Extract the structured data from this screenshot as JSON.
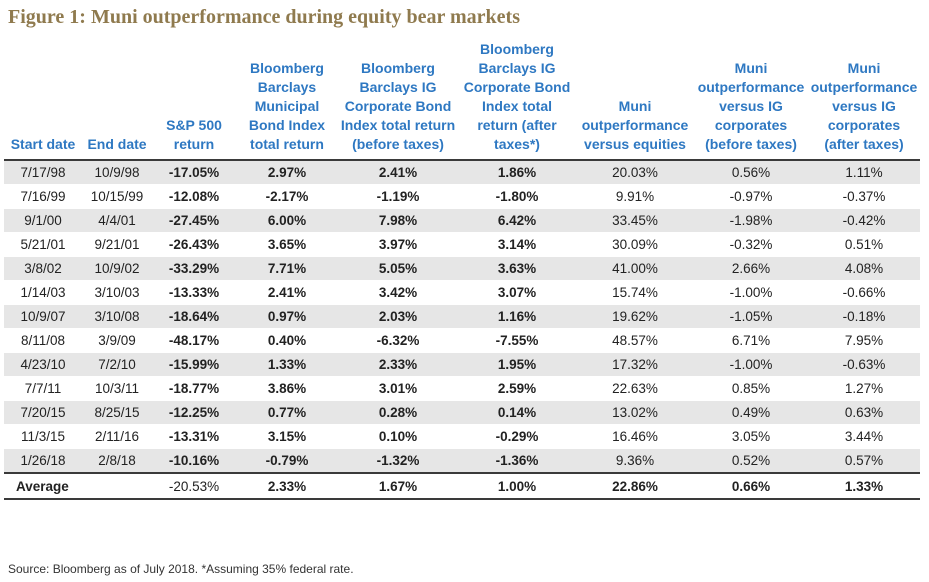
{
  "figure": {
    "title": "Figure 1: Muni outperformance during equity bear markets",
    "source": "Source: Bloomberg as of July 2018. *Assuming 35% federal rate."
  },
  "table": {
    "headers": [
      "Start date",
      "End date",
      "S&P 500 return",
      "Bloomberg Barclays Municipal Bond Index total return",
      "Bloomberg Barclays IG Corporate Bond Index total return (before taxes)",
      "Bloomberg Barclays IG Corporate Bond Index total return (after taxes*)",
      "Muni outperformance versus equities",
      "Muni outperformance versus IG corporates (before taxes)",
      "Muni outperformance versus IG corporates (after taxes)"
    ],
    "rows": [
      [
        "7/17/98",
        "10/9/98",
        "-17.05%",
        "2.97%",
        "2.41%",
        "1.86%",
        "20.03%",
        "0.56%",
        "1.11%"
      ],
      [
        "7/16/99",
        "10/15/99",
        "-12.08%",
        "-2.17%",
        "-1.19%",
        "-1.80%",
        "9.91%",
        "-0.97%",
        "-0.37%"
      ],
      [
        "9/1/00",
        "4/4/01",
        "-27.45%",
        "6.00%",
        "7.98%",
        "6.42%",
        "33.45%",
        "-1.98%",
        "-0.42%"
      ],
      [
        "5/21/01",
        "9/21/01",
        "-26.43%",
        "3.65%",
        "3.97%",
        "3.14%",
        "30.09%",
        "-0.32%",
        "0.51%"
      ],
      [
        "3/8/02",
        "10/9/02",
        "-33.29%",
        "7.71%",
        "5.05%",
        "3.63%",
        "41.00%",
        "2.66%",
        "4.08%"
      ],
      [
        "1/14/03",
        "3/10/03",
        "-13.33%",
        "2.41%",
        "3.42%",
        "3.07%",
        "15.74%",
        "-1.00%",
        "-0.66%"
      ],
      [
        "10/9/07",
        "3/10/08",
        "-18.64%",
        "0.97%",
        "2.03%",
        "1.16%",
        "19.62%",
        "-1.05%",
        "-0.18%"
      ],
      [
        "8/11/08",
        "3/9/09",
        "-48.17%",
        "0.40%",
        "-6.32%",
        "-7.55%",
        "48.57%",
        "6.71%",
        "7.95%"
      ],
      [
        "4/23/10",
        "7/2/10",
        "-15.99%",
        "1.33%",
        "2.33%",
        "1.95%",
        "17.32%",
        "-1.00%",
        "-0.63%"
      ],
      [
        "7/7/11",
        "10/3/11",
        "-18.77%",
        "3.86%",
        "3.01%",
        "2.59%",
        "22.63%",
        "0.85%",
        "1.27%"
      ],
      [
        "7/20/15",
        "8/25/15",
        "-12.25%",
        "0.77%",
        "0.28%",
        "0.14%",
        "13.02%",
        "0.49%",
        "0.63%"
      ],
      [
        "11/3/15",
        "2/11/16",
        "-13.31%",
        "3.15%",
        "0.10%",
        "-0.29%",
        "16.46%",
        "3.05%",
        "3.44%"
      ],
      [
        "1/26/18",
        "2/8/18",
        "-10.16%",
        "-0.79%",
        "-1.32%",
        "-1.36%",
        "9.36%",
        "0.52%",
        "0.57%"
      ]
    ],
    "average": [
      "Average",
      "-20.53%",
      "2.33%",
      "1.67%",
      "1.00%",
      "22.86%",
      "0.66%",
      "1.33%"
    ]
  }
}
